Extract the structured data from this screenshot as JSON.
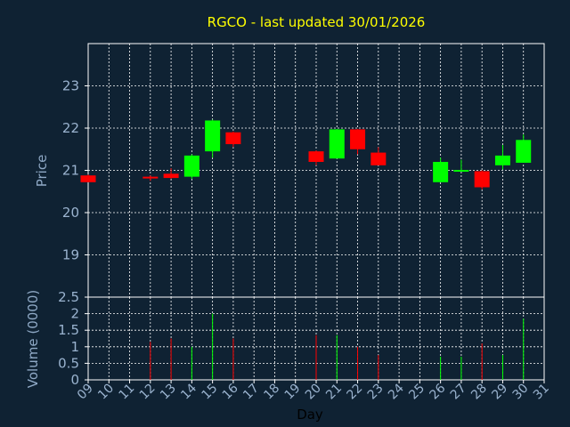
{
  "chart_data": [
    {
      "type": "candlestick",
      "title": "RGCO - last updated 30/01/2026",
      "ylabel": "Price",
      "ylim": [
        18,
        24
      ],
      "yticks": [
        19,
        20,
        21,
        22,
        23
      ],
      "grid": true,
      "colors": {
        "up": "#00ff00",
        "down": "#ff0000",
        "grid": "#ffffff",
        "axis": "#ffffff",
        "background": "#0f2233"
      },
      "candles": [
        {
          "day": "09",
          "open": 20.88,
          "high": 20.9,
          "low": 20.72,
          "close": 20.72
        },
        {
          "day": "12",
          "open": 20.85,
          "high": 20.88,
          "low": 20.75,
          "close": 20.82
        },
        {
          "day": "13",
          "open": 20.92,
          "high": 21.05,
          "low": 20.8,
          "close": 20.82
        },
        {
          "day": "14",
          "open": 20.85,
          "high": 21.38,
          "low": 20.8,
          "close": 21.35
        },
        {
          "day": "15",
          "open": 21.45,
          "high": 22.2,
          "low": 21.3,
          "close": 22.18
        },
        {
          "day": "16",
          "open": 21.9,
          "high": 21.92,
          "low": 21.55,
          "close": 21.62
        },
        {
          "day": "20",
          "open": 21.45,
          "high": 21.47,
          "low": 21.12,
          "close": 21.2
        },
        {
          "day": "21",
          "open": 21.28,
          "high": 21.98,
          "low": 21.28,
          "close": 21.97
        },
        {
          "day": "22",
          "open": 21.97,
          "high": 21.98,
          "low": 21.38,
          "close": 21.5
        },
        {
          "day": "23",
          "open": 21.42,
          "high": 21.55,
          "low": 21.12,
          "close": 21.12
        },
        {
          "day": "26",
          "open": 20.72,
          "high": 21.3,
          "low": 20.72,
          "close": 21.2
        },
        {
          "day": "27",
          "open": 20.99,
          "high": 21.25,
          "low": 20.98,
          "close": 21.01
        },
        {
          "day": "28",
          "open": 20.98,
          "high": 21.0,
          "low": 20.55,
          "close": 20.6
        },
        {
          "day": "29",
          "open": 21.12,
          "high": 21.6,
          "low": 21.02,
          "close": 21.35
        },
        {
          "day": "30",
          "open": 21.18,
          "high": 21.85,
          "low": 21.18,
          "close": 21.72
        }
      ]
    },
    {
      "type": "bar",
      "ylabel": "Volume (0000)",
      "xlabel": "Day",
      "ylim": [
        0,
        2.5
      ],
      "yticks": [
        0,
        0.5,
        1,
        1.5,
        2,
        2.5
      ],
      "grid": true,
      "categories": [
        "09",
        "10",
        "11",
        "12",
        "13",
        "14",
        "15",
        "16",
        "17",
        "18",
        "19",
        "20",
        "21",
        "22",
        "23",
        "24",
        "25",
        "26",
        "27",
        "28",
        "29",
        "30",
        "31"
      ],
      "bars": [
        {
          "day": "12",
          "value": 1.15,
          "color": "#ff0000"
        },
        {
          "day": "13",
          "value": 1.25,
          "color": "#ff0000"
        },
        {
          "day": "14",
          "value": 1.0,
          "color": "#00ff00"
        },
        {
          "day": "15",
          "value": 2.0,
          "color": "#00ff00"
        },
        {
          "day": "16",
          "value": 1.25,
          "color": "#ff0000"
        },
        {
          "day": "20",
          "value": 1.35,
          "color": "#ff0000"
        },
        {
          "day": "21",
          "value": 1.35,
          "color": "#00ff00"
        },
        {
          "day": "22",
          "value": 1.0,
          "color": "#ff0000"
        },
        {
          "day": "23",
          "value": 0.75,
          "color": "#ff0000"
        },
        {
          "day": "26",
          "value": 0.7,
          "color": "#00ff00"
        },
        {
          "day": "27",
          "value": 0.7,
          "color": "#00ff00"
        },
        {
          "day": "28",
          "value": 1.1,
          "color": "#ff0000"
        },
        {
          "day": "29",
          "value": 0.75,
          "color": "#00ff00"
        },
        {
          "day": "30",
          "value": 1.85,
          "color": "#00ff00"
        }
      ]
    }
  ]
}
